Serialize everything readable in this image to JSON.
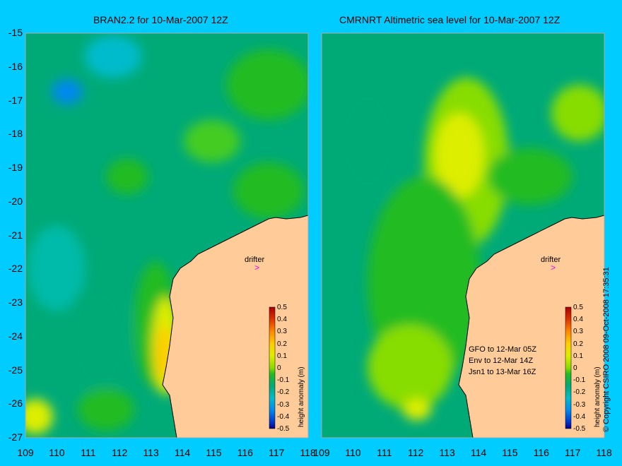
{
  "panels": [
    {
      "title": "BRAN2.2 for 10-Mar-2007 12Z"
    },
    {
      "title": "CMRNRT Altimetric sea level  for 10-Mar-2007 12Z"
    }
  ],
  "y_axis": {
    "ticks": [
      "-15",
      "-16",
      "-17",
      "-18",
      "-19",
      "-20",
      "-21",
      "-22",
      "-23",
      "-24",
      "-25",
      "-26",
      "-27"
    ]
  },
  "x_axis": {
    "ticks": [
      "109",
      "110",
      "111",
      "112",
      "113",
      "114",
      "115",
      "116",
      "117",
      "118"
    ]
  },
  "colorbar": {
    "label": "height anomaly (m)",
    "ticks": [
      "0.5",
      "0.4",
      "0.3",
      "0.2",
      "0.1",
      "0",
      "-0.1",
      "-0.2",
      "-0.3",
      "-0.4",
      "-0.5"
    ],
    "colors": [
      "#aa0000",
      "#dd3300",
      "#ff8800",
      "#ffcc00",
      "#ddee00",
      "#88dd00",
      "#22bb22",
      "#00aa77",
      "#00bbcc",
      "#0088ee",
      "#0033cc",
      "#000088"
    ]
  },
  "drifter_label": "drifter",
  "satellite_legend": [
    "GFO to 12-Mar 05Z",
    "Env to 12-Mar 14Z",
    "Jsn1 to 13-Mar 16Z"
  ],
  "copyright": "© Copyright CSIRO 2008   09-Oct-2008 17:35:31",
  "colors": {
    "background": "#00ccff",
    "land": "#ffcc99",
    "ocean_base": "#00bb55",
    "drifter": "#ee00ee"
  }
}
